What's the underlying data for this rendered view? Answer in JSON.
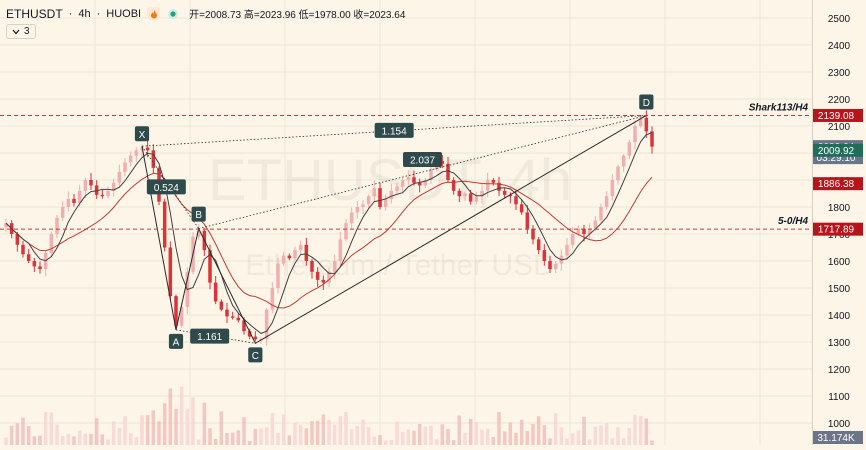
{
  "header": {
    "symbol": "ETHUSDT",
    "interval": "4h",
    "exchange": "HUOBI",
    "ohlc": "开=2008.73 高=2023.96 低=1978.00 收=2023.64"
  },
  "indicators": {
    "collapse_label": "3"
  },
  "watermark": {
    "main": "ETHUSDT, 4h",
    "sub": "Ethereum / Tether USD"
  },
  "colors": {
    "up": "#f0aeae",
    "down": "#d9343a",
    "ma_fast": "#404040",
    "ma_slow": "#c53a35",
    "grid": "#ece6d6",
    "bg": "#fdf6e8",
    "level": "#c53a35"
  },
  "price_axis": {
    "ticks": [
      "2500",
      "2400",
      "2300",
      "2200",
      "2100",
      "2000",
      "1900",
      "1800",
      "1700",
      "1600",
      "1500",
      "1400",
      "1300",
      "1200",
      "1100",
      "1000"
    ]
  },
  "price_tags": [
    {
      "label": "2139.08",
      "value": 2139.08,
      "bg": "#b5151b"
    },
    {
      "label": "2023.64",
      "value": 2023.64,
      "bg": "#6a7588",
      "timer": "03:29:10"
    },
    {
      "label": "2009.92",
      "value": 2009.92,
      "bg": "#1e6e5a"
    },
    {
      "label": "1886.38",
      "value": 1886.38,
      "bg": "#b5151b"
    },
    {
      "label": "1717.89",
      "value": 1717.89,
      "bg": "#b5151b"
    }
  ],
  "volume_tag": {
    "label": "31.174K"
  },
  "levels": [
    {
      "label": "Shark113/H4",
      "value": 2139.08
    },
    {
      "label": "5-0/H4",
      "value": 1717.89
    }
  ],
  "chart_data": {
    "type": "candlestick",
    "title": "ETHUSDT · 4h · HUOBI",
    "y_range": [
      950,
      2550
    ],
    "pattern_points": [
      {
        "label": "X",
        "value": 2025
      },
      {
        "label": "A",
        "value": 1345
      },
      {
        "label": "B",
        "value": 1720
      },
      {
        "label": "C",
        "value": 1295
      },
      {
        "label": "D",
        "value": 2139
      }
    ],
    "ratios": [
      {
        "label": "0.524"
      },
      {
        "label": "1.161"
      },
      {
        "label": "2.037"
      },
      {
        "label": "1.154"
      }
    ],
    "closes": [
      1740,
      1700,
      1660,
      1625,
      1600,
      1580,
      1570,
      1630,
      1700,
      1760,
      1800,
      1830,
      1815,
      1860,
      1900,
      1880,
      1845,
      1840,
      1860,
      1890,
      1930,
      1965,
      1990,
      2010,
      2020,
      2010,
      1945,
      1820,
      1650,
      1470,
      1360,
      1430,
      1560,
      1690,
      1712,
      1640,
      1520,
      1450,
      1420,
      1395,
      1390,
      1380,
      1340,
      1320,
      1310,
      1310,
      1420,
      1500,
      1590,
      1620,
      1610,
      1640,
      1660,
      1600,
      1560,
      1530,
      1520,
      1560,
      1600,
      1680,
      1740,
      1780,
      1800,
      1810,
      1840,
      1870,
      1800,
      1830,
      1860,
      1875,
      1900,
      1910,
      1890,
      1880,
      1900,
      1940,
      1970,
      1960,
      1900,
      1860,
      1840,
      1850,
      1820,
      1840,
      1860,
      1900,
      1890,
      1860,
      1845,
      1840,
      1810,
      1780,
      1720,
      1680,
      1640,
      1600,
      1570,
      1590,
      1620,
      1660,
      1700,
      1720,
      1700,
      1720,
      1750,
      1800,
      1840,
      1900,
      1950,
      1990,
      2040,
      2100,
      2130,
      2080,
      2023.64
    ]
  }
}
